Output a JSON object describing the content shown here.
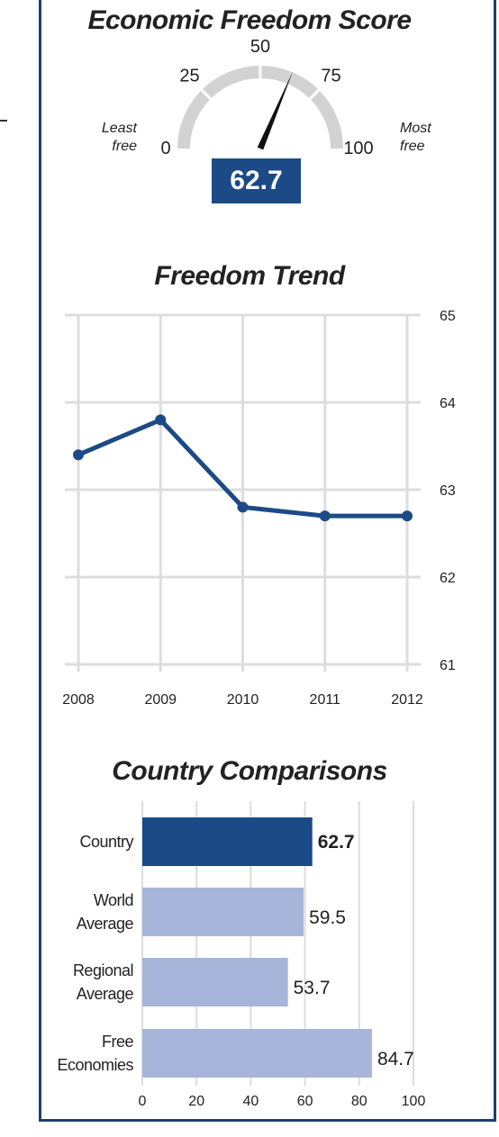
{
  "colors": {
    "border": "#1c3f73",
    "primary": "#1c4a86",
    "bar_light": "#a6b5d9",
    "gauge_arc": "#d2d2d2",
    "grid": "#dddddd"
  },
  "chart_data": [
    {
      "type": "gauge",
      "title": "Economic Freedom Score",
      "value": 62.7,
      "value_label": "62.7",
      "range": [
        0,
        100
      ],
      "ticks": [
        "0",
        "25",
        "50",
        "75",
        "100"
      ],
      "left_caption": [
        "Least",
        "free"
      ],
      "right_caption": [
        "Most",
        "free"
      ]
    },
    {
      "type": "line",
      "title": "Freedom Trend",
      "x": [
        "2008",
        "2009",
        "2010",
        "2011",
        "2012"
      ],
      "series": [
        {
          "values": [
            63.4,
            63.8,
            62.8,
            62.7,
            62.7
          ]
        }
      ],
      "ylim": [
        61,
        65
      ],
      "yticks": [
        "65",
        "64",
        "63",
        "62",
        "61"
      ],
      "grid": true
    },
    {
      "type": "bar",
      "orientation": "horizontal",
      "title": "Country Comparisons",
      "categories": [
        [
          "Country"
        ],
        [
          "World",
          "Average"
        ],
        [
          "Regional",
          "Average"
        ],
        [
          "Free",
          "Economies"
        ]
      ],
      "values": [
        62.7,
        59.5,
        53.7,
        84.7
      ],
      "value_labels": [
        "62.7",
        "59.5",
        "53.7",
        "84.7"
      ],
      "highlight_index": 0,
      "xlim": [
        0,
        100
      ],
      "xticks": [
        "0",
        "20",
        "40",
        "60",
        "80",
        "100"
      ],
      "grid": true
    }
  ]
}
